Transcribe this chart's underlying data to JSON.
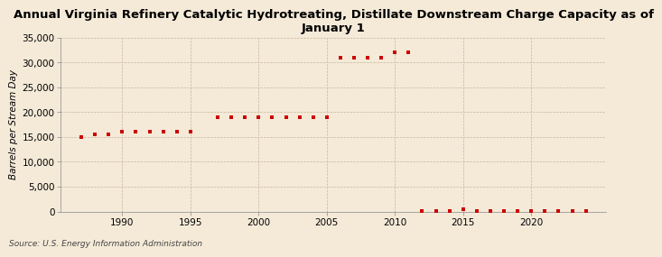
{
  "title": "Annual Virginia Refinery Catalytic Hydrotreating, Distillate Downstream Charge Capacity as of\nJanuary 1",
  "ylabel": "Barrels per Stream Day",
  "source": "Source: U.S. Energy Information Administration",
  "background_color": "#f5ead8",
  "dot_color": "#cc0000",
  "years": [
    1987,
    1988,
    1989,
    1990,
    1991,
    1992,
    1993,
    1994,
    1995,
    1997,
    1998,
    1999,
    2000,
    2001,
    2002,
    2003,
    2004,
    2005,
    2006,
    2007,
    2008,
    2009,
    2010,
    2011,
    2012,
    2013,
    2014,
    2015,
    2016,
    2017,
    2018,
    2019,
    2020,
    2021,
    2022,
    2023,
    2024
  ],
  "values": [
    15000,
    15500,
    15500,
    16000,
    16000,
    16000,
    16000,
    16000,
    16000,
    19000,
    19000,
    19000,
    19000,
    19000,
    19000,
    19000,
    19000,
    19000,
    31000,
    31000,
    31000,
    31000,
    32000,
    32000,
    200,
    200,
    200,
    400,
    200,
    200,
    200,
    200,
    200,
    200,
    200,
    200,
    200
  ],
  "xlim": [
    1985.5,
    2025.5
  ],
  "ylim": [
    0,
    35000
  ],
  "yticks": [
    0,
    5000,
    10000,
    15000,
    20000,
    25000,
    30000,
    35000
  ],
  "xticks": [
    1990,
    1995,
    2000,
    2005,
    2010,
    2015,
    2020
  ],
  "grid_color": "#c8b49a",
  "title_fontsize": 9.5,
  "label_fontsize": 7.5,
  "tick_fontsize": 7.5,
  "source_fontsize": 6.5
}
